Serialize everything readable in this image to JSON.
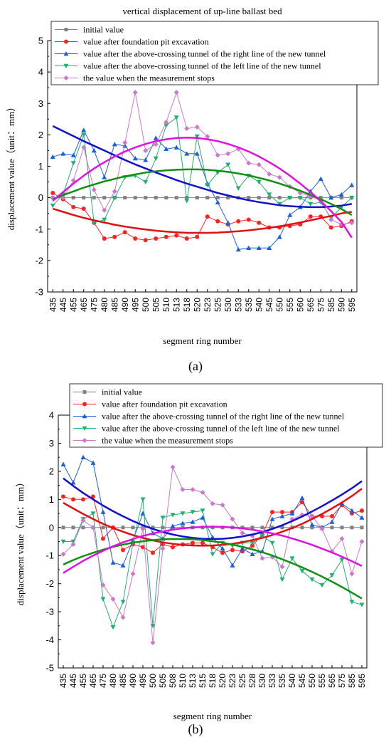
{
  "chart_data": [
    {
      "type": "line",
      "panel_label": "(a)",
      "title": "vertical displacement of up-line ballast bed",
      "xlabel": "segment ring number",
      "ylabel": "displacement value（unit：mm）",
      "ylim": [
        -3,
        5
      ],
      "yticks": [
        "-3",
        "-2",
        "-1",
        "0",
        "1",
        "2",
        "3",
        "4",
        "5"
      ],
      "categories": [
        "435",
        "445",
        "455",
        "465",
        "475",
        "480",
        "485",
        "490",
        "495",
        "500",
        "505",
        "510",
        "513",
        "518",
        "520",
        "523",
        "525",
        "530",
        "533",
        "535",
        "540",
        "545",
        "550",
        "555",
        "560",
        "565",
        "575",
        "585",
        "590",
        "595"
      ],
      "legend_position": "top-right",
      "series": [
        {
          "name": "initial value",
          "color": "#808080",
          "marker": "square",
          "values": [
            0,
            0,
            0,
            0,
            0,
            0,
            0,
            0,
            0,
            0,
            0,
            0,
            0,
            0,
            0,
            0,
            0,
            0,
            0,
            0,
            0,
            0,
            0,
            0,
            0,
            0,
            0,
            0,
            0,
            0
          ],
          "fit": null
        },
        {
          "name": "value after foundation pit excavation",
          "color": "#ff2020",
          "marker": "circle",
          "values": [
            0.15,
            -0.05,
            -0.3,
            -0.35,
            -0.8,
            -1.3,
            -1.25,
            -1.1,
            -1.3,
            -1.35,
            -1.3,
            -1.25,
            -1.2,
            -1.3,
            -1.25,
            -0.6,
            -0.75,
            -0.85,
            -0.75,
            -0.7,
            -0.8,
            -0.95,
            -0.95,
            -0.9,
            -0.85,
            -0.6,
            -0.6,
            -0.95,
            -0.9,
            -0.75
          ],
          "fit": {
            "color": "#e01010",
            "values": [
              -0.35,
              -0.45,
              -0.55,
              -0.64,
              -0.72,
              -0.79,
              -0.86,
              -0.92,
              -0.97,
              -1.01,
              -1.05,
              -1.08,
              -1.1,
              -1.12,
              -1.12,
              -1.12,
              -1.11,
              -1.09,
              -1.07,
              -1.04,
              -1.0,
              -0.96,
              -0.91,
              -0.85,
              -0.79,
              -0.72,
              -0.65,
              -0.58,
              -0.5,
              -0.45
            ]
          }
        },
        {
          "name": "value after the above-crossing tunnel of the right line of the new tunnel",
          "color": "#1a5fd8",
          "marker": "triangle-up",
          "values": [
            1.3,
            1.4,
            1.35,
            2.15,
            1.5,
            0.65,
            1.7,
            1.65,
            1.25,
            1.2,
            1.9,
            1.55,
            1.6,
            1.4,
            1.4,
            0.45,
            -0.15,
            -0.8,
            -1.65,
            -1.6,
            -1.6,
            -1.6,
            -1.25,
            -0.55,
            -0.3,
            0.2,
            0.6,
            0.0,
            0.1,
            0.4
          ],
          "fit": {
            "color": "#1010d0",
            "values": [
              2.28,
              2.12,
              1.96,
              1.8,
              1.65,
              1.5,
              1.35,
              1.2,
              1.06,
              0.93,
              0.8,
              0.68,
              0.56,
              0.45,
              0.35,
              0.25,
              0.15,
              0.07,
              -0.01,
              -0.08,
              -0.14,
              -0.19,
              -0.24,
              -0.27,
              -0.29,
              -0.3,
              -0.3,
              -0.28,
              -0.25,
              -0.2
            ]
          }
        },
        {
          "name": "value after the above-crossing tunnel of the left line of the new tunnel",
          "color": "#20b070",
          "marker": "triangle-down",
          "values": [
            -0.25,
            0.1,
            1.1,
            2.0,
            -0.8,
            -0.7,
            0.0,
            0.65,
            0.7,
            0.5,
            1.25,
            2.3,
            2.55,
            -0.1,
            1.95,
            0.4,
            0.8,
            1.05,
            0.3,
            0.7,
            0.5,
            0.1,
            -0.2,
            0.0,
            0.0,
            -0.2,
            -0.15,
            -0.65,
            -0.3,
            0.0
          ],
          "fit": {
            "color": "#109010",
            "values": [
              -0.05,
              0.08,
              0.2,
              0.32,
              0.42,
              0.52,
              0.6,
              0.68,
              0.74,
              0.8,
              0.84,
              0.87,
              0.89,
              0.9,
              0.9,
              0.89,
              0.86,
              0.82,
              0.77,
              0.71,
              0.63,
              0.55,
              0.45,
              0.34,
              0.22,
              0.09,
              -0.05,
              -0.2,
              -0.36,
              -0.55
            ]
          }
        },
        {
          "name": "the value when the measurement stops",
          "color": "#cc77cc",
          "marker": "diamond",
          "values": [
            0.0,
            0.0,
            0.55,
            1.6,
            0.25,
            -0.4,
            0.2,
            1.75,
            3.35,
            1.5,
            1.7,
            2.4,
            3.35,
            2.2,
            2.25,
            1.95,
            1.35,
            1.4,
            1.55,
            1.1,
            1.05,
            0.75,
            0.65,
            0.35,
            0.15,
            0.05,
            -0.1,
            -0.7,
            -0.85,
            -0.8
          ],
          "fit": {
            "color": "#e010e0",
            "values": [
              -0.1,
              0.18,
              0.45,
              0.7,
              0.93,
              1.13,
              1.31,
              1.47,
              1.6,
              1.71,
              1.8,
              1.86,
              1.9,
              1.91,
              1.9,
              1.86,
              1.8,
              1.71,
              1.6,
              1.47,
              1.31,
              1.13,
              0.93,
              0.7,
              0.45,
              0.18,
              -0.11,
              -0.43,
              -0.77,
              -1.27
            ]
          }
        }
      ]
    },
    {
      "type": "line",
      "panel_label": "(b)",
      "title": "vertical displacement of down-line ballast bed",
      "xlabel": "segment ring number",
      "ylabel": "displacement value（unit：mm）",
      "ylim": [
        -5,
        4
      ],
      "yticks": [
        "-5",
        "-4",
        "-3",
        "-2",
        "-1",
        "0",
        "1",
        "2",
        "3",
        "4"
      ],
      "categories": [
        "435",
        "445",
        "455",
        "465",
        "475",
        "480",
        "485",
        "490",
        "495",
        "500",
        "505",
        "508",
        "510",
        "513",
        "515",
        "518",
        "520",
        "523",
        "525",
        "528",
        "530",
        "533",
        "535",
        "540",
        "545",
        "550",
        "555",
        "565",
        "575",
        "585",
        "595"
      ],
      "legend_position": "top-right",
      "series": [
        {
          "name": "initial value",
          "color": "#808080",
          "marker": "square",
          "values": [
            0,
            0,
            0,
            0,
            0,
            0,
            0,
            0,
            0,
            0,
            0,
            0,
            0,
            0,
            0,
            0,
            0,
            0,
            0,
            0,
            0,
            0,
            0,
            0,
            0,
            0,
            0,
            0,
            0,
            0,
            0
          ],
          "fit": null
        },
        {
          "name": "value after foundation pit excavation",
          "color": "#ff2020",
          "marker": "circle",
          "values": [
            1.1,
            1.0,
            1.0,
            1.1,
            -0.4,
            0.0,
            -0.8,
            -0.6,
            -0.7,
            -0.9,
            -0.6,
            -0.7,
            -0.6,
            -0.55,
            -0.55,
            -0.7,
            -0.9,
            -0.8,
            -0.85,
            -0.65,
            -0.25,
            0.55,
            0.55,
            0.55,
            0.9,
            0.4,
            0.4,
            0.4,
            0.8,
            0.5,
            0.6
          ],
          "fit": {
            "color": "#e01010",
            "values": [
              0.88,
              0.68,
              0.48,
              0.3,
              0.13,
              -0.02,
              -0.15,
              -0.27,
              -0.37,
              -0.46,
              -0.53,
              -0.58,
              -0.62,
              -0.64,
              -0.65,
              -0.64,
              -0.62,
              -0.58,
              -0.52,
              -0.45,
              -0.37,
              -0.27,
              -0.15,
              -0.02,
              0.13,
              0.3,
              0.48,
              0.68,
              0.89,
              1.12,
              1.38
            ]
          }
        },
        {
          "name": "value after the above-crossing tunnel of the right line of the new tunnel",
          "color": "#1a5fd8",
          "marker": "triangle-up",
          "values": [
            2.25,
            1.6,
            2.5,
            2.3,
            0.55,
            -1.25,
            -1.35,
            -0.45,
            0.5,
            -0.2,
            -0.4,
            0.05,
            0.15,
            0.2,
            0.35,
            -0.35,
            -0.75,
            -1.35,
            -0.75,
            -0.95,
            -0.85,
            0.3,
            0.4,
            0.5,
            1.05,
            0.1,
            0.0,
            0.2,
            0.85,
            0.6,
            0.35
          ],
          "fit": {
            "color": "#1010d0",
            "values": [
              1.75,
              1.48,
              1.23,
              1.0,
              0.78,
              0.58,
              0.4,
              0.23,
              0.08,
              -0.05,
              -0.16,
              -0.25,
              -0.32,
              -0.37,
              -0.4,
              -0.41,
              -0.4,
              -0.37,
              -0.32,
              -0.25,
              -0.16,
              -0.05,
              0.08,
              0.23,
              0.39,
              0.57,
              0.76,
              0.96,
              1.17,
              1.4,
              1.65
            ]
          }
        },
        {
          "name": "value after the above-crossing tunnel of the left line of the new tunnel",
          "color": "#20b070",
          "marker": "triangle-down",
          "values": [
            -0.5,
            -0.5,
            0.3,
            0.5,
            -2.55,
            -3.55,
            -2.65,
            -0.55,
            1.0,
            -3.5,
            0.35,
            0.45,
            0.5,
            0.55,
            0.6,
            -0.95,
            -0.55,
            -0.65,
            -0.55,
            -0.55,
            -0.3,
            -0.55,
            -1.85,
            -1.1,
            -1.55,
            -1.85,
            -2.05,
            -1.7,
            -1.15,
            -2.65,
            -2.75
          ],
          "fit": {
            "color": "#109010",
            "values": [
              -1.32,
              -1.16,
              -1.02,
              -0.9,
              -0.79,
              -0.69,
              -0.61,
              -0.54,
              -0.49,
              -0.45,
              -0.42,
              -0.41,
              -0.41,
              -0.42,
              -0.45,
              -0.49,
              -0.54,
              -0.61,
              -0.69,
              -0.78,
              -0.88,
              -1.0,
              -1.13,
              -1.27,
              -1.42,
              -1.58,
              -1.75,
              -1.93,
              -2.12,
              -2.32,
              -2.53
            ]
          }
        },
        {
          "name": "the value when the measurement stops",
          "color": "#cc77cc",
          "marker": "diamond",
          "values": [
            -0.95,
            -0.6,
            0.25,
            0.0,
            -2.05,
            -2.55,
            -3.2,
            -1.65,
            -0.05,
            -4.1,
            -0.75,
            2.15,
            1.35,
            1.35,
            1.25,
            0.85,
            0.8,
            0.3,
            -0.2,
            -0.3,
            -1.1,
            -1.05,
            -1.4,
            0.3,
            0.45,
            0.4,
            -0.05,
            -0.85,
            -0.4,
            -1.65,
            -0.5
          ],
          "fit": {
            "color": "#e010e0",
            "values": [
              -1.62,
              -1.4,
              -1.19,
              -1.0,
              -0.83,
              -0.67,
              -0.53,
              -0.41,
              -0.3,
              -0.21,
              -0.14,
              -0.08,
              -0.03,
              0.0,
              0.02,
              0.03,
              0.02,
              0.0,
              -0.03,
              -0.08,
              -0.14,
              -0.21,
              -0.29,
              -0.39,
              -0.5,
              -0.62,
              -0.75,
              -0.89,
              -1.04,
              -1.2,
              -1.37
            ]
          }
        }
      ]
    }
  ]
}
